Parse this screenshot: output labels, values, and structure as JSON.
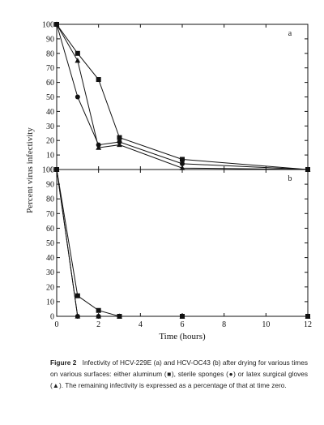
{
  "chart_data": [
    {
      "type": "line",
      "panel_label": "a",
      "x": [
        0,
        1,
        2,
        3,
        6,
        12
      ],
      "ylim": [
        0,
        100
      ],
      "yticks": [
        0,
        10,
        20,
        30,
        40,
        50,
        60,
        70,
        80,
        90,
        100
      ],
      "series": [
        {
          "marker": "square",
          "x": [
            0,
            1,
            2,
            3,
            6,
            12
          ],
          "values": [
            100,
            80,
            62,
            22,
            7,
            0
          ]
        },
        {
          "marker": "circle",
          "x": [
            0,
            1,
            2,
            3,
            6,
            12
          ],
          "values": [
            100,
            50,
            17,
            19,
            4,
            0
          ]
        },
        {
          "marker": "triangle",
          "x": [
            0,
            1,
            2,
            3,
            6,
            12
          ],
          "values": [
            100,
            75,
            15,
            17,
            1,
            0
          ]
        }
      ]
    },
    {
      "type": "line",
      "panel_label": "b",
      "x": [
        0,
        1,
        2,
        3,
        6,
        12
      ],
      "ylim": [
        0,
        100
      ],
      "yticks": [
        0,
        10,
        20,
        30,
        40,
        50,
        60,
        70,
        80,
        90,
        100
      ],
      "series": [
        {
          "marker": "square",
          "x": [
            0,
            1,
            2,
            3,
            6,
            12
          ],
          "values": [
            100,
            14,
            4,
            0,
            0,
            0
          ]
        },
        {
          "marker": "circle",
          "x": [
            0,
            1,
            2,
            3,
            6,
            12
          ],
          "values": [
            100,
            0,
            0,
            0,
            0,
            0
          ]
        },
        {
          "marker": "triangle",
          "x": [
            0,
            1,
            2,
            3,
            6,
            12
          ],
          "values": [
            100,
            0,
            0,
            0,
            0,
            0
          ]
        }
      ]
    }
  ],
  "axes": {
    "xlabel": "Time (hours)",
    "ylabel": "Percent virus infectivity",
    "xlim": [
      0,
      12
    ],
    "xticks": [
      0,
      2,
      4,
      6,
      8,
      10,
      12
    ],
    "grid": false
  },
  "caption": {
    "label": "Figure 2",
    "text": "Infectivity of HCV-229E (a) and HCV-OC43 (b) after drying for various times on various surfaces: either aluminum (■), sterile sponges (●) or latex surgical gloves (▲). The remaining infectivity is expressed as a percentage of that at time zero."
  }
}
